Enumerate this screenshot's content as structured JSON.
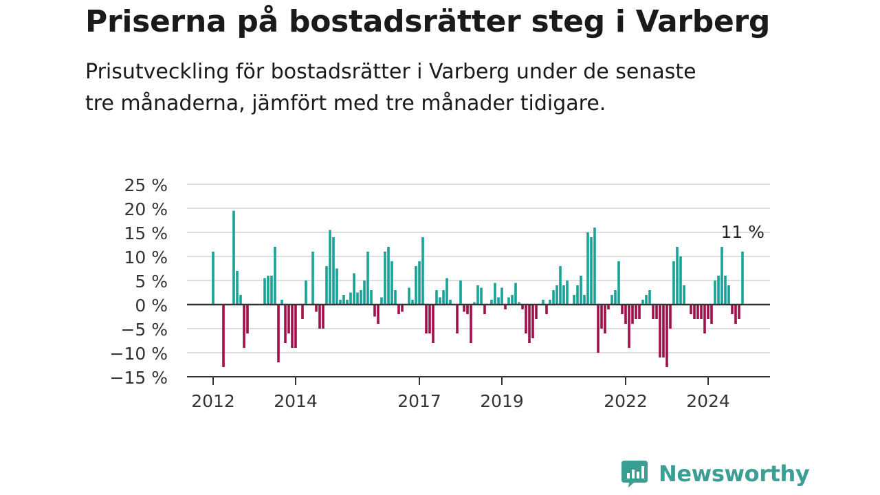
{
  "title": "Priserna på bostadsrätter steg i Varberg",
  "subtitle": "Prisutveckling för bostadsrätter i Varberg under de senaste tre månaderna, jämfört med tre månader tidigare.",
  "brand": {
    "name": "Newsworthy"
  },
  "colors": {
    "positive": "#17a398",
    "negative": "#a0104a",
    "grid": "#dddddd",
    "axis": "#333333",
    "brand": "#3a9e94"
  },
  "chart_data": {
    "type": "bar",
    "ylim": [
      -15,
      25
    ],
    "y_ticks": [
      25,
      20,
      15,
      10,
      5,
      0,
      -5,
      -10,
      -15
    ],
    "y_tick_labels": [
      "25 %",
      "20 %",
      "15 %",
      "10 %",
      "5 %",
      "0 %",
      "−5 %",
      "−10 %",
      "−15 %"
    ],
    "x_tick_labels": [
      "2012",
      "2014",
      "2017",
      "2019",
      "2022",
      "2024"
    ],
    "annotation": "11 %",
    "values": [
      11,
      0,
      0,
      -13,
      0,
      0,
      19.5,
      7,
      2,
      -9,
      -6,
      0,
      0,
      0,
      0,
      5.5,
      6,
      6,
      12,
      -12,
      1,
      -8,
      -6,
      -9,
      -9,
      0,
      -3,
      5,
      0,
      11,
      -1.5,
      -5,
      -5,
      8,
      15.5,
      14,
      7.5,
      1,
      2,
      1,
      2.5,
      6.5,
      2.5,
      3,
      5,
      11,
      3,
      -2.5,
      -4,
      1.5,
      11,
      12,
      9,
      3,
      -2,
      -1.5,
      0,
      3.5,
      1,
      8,
      9,
      14,
      -6,
      -6,
      -8,
      3,
      1.5,
      3,
      5.5,
      1,
      0,
      -6,
      5,
      -1.5,
      -2,
      -8,
      0.5,
      4,
      3.5,
      -2,
      0,
      1,
      4.5,
      1.5,
      3.5,
      -1,
      1.5,
      2,
      4.5,
      0.5,
      -1,
      -6,
      -8,
      -7,
      -3,
      0,
      1,
      -2,
      1,
      3,
      4,
      8,
      4,
      5,
      0,
      2,
      4,
      6,
      2,
      15,
      14,
      16,
      -10,
      -5,
      -6,
      -1,
      2,
      3,
      9,
      -2,
      -4,
      -9,
      -4,
      -3,
      -3,
      1,
      2,
      3,
      -3,
      -3,
      -11,
      -11,
      -13,
      -5,
      9,
      12,
      10,
      4,
      0,
      -2,
      -3,
      -3,
      -3,
      -6,
      -3,
      -4,
      5,
      6,
      12,
      6,
      4,
      -2,
      -4,
      -3,
      11
    ]
  }
}
